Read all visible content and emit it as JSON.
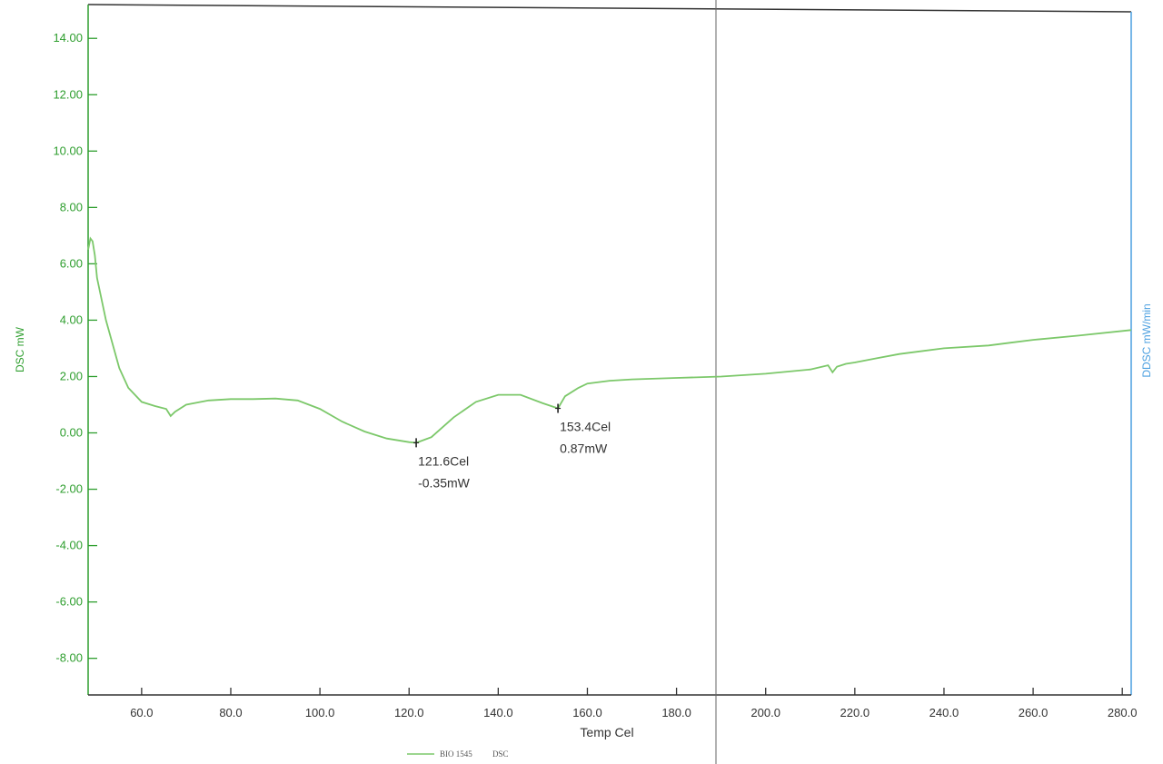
{
  "chart_data": {
    "type": "line",
    "xlabel": "Temp Cel",
    "ylabel": "DSC mW",
    "y2label": "DDSC mW/min",
    "xlim": [
      48,
      282
    ],
    "ylim": [
      -9.3,
      15.2
    ],
    "x_ticks": [
      60,
      80,
      100,
      120,
      140,
      160,
      180,
      200,
      220,
      240,
      260,
      280
    ],
    "x_tick_labels": [
      "60.0",
      "80.0",
      "100.0",
      "120.0",
      "140.0",
      "160.0",
      "180.0",
      "200.0",
      "220.0",
      "240.0",
      "260.0",
      "280.0"
    ],
    "y_ticks": [
      14,
      12,
      10,
      8,
      6,
      4,
      2,
      0,
      -2,
      -4,
      -6,
      -8
    ],
    "y_tick_labels": [
      "14.00",
      "12.00",
      "10.00",
      "8.00",
      "6.00",
      "4.00",
      "2.00",
      "0.00",
      "-2.00",
      "-4.00",
      "-6.00",
      "-8.00"
    ],
    "grid": false,
    "legend_position": "bottom-center",
    "colors": {
      "series": "#7cc86a",
      "axis": "#2e9e2e",
      "y2axis": "#4a9fe0",
      "frame": "#333333"
    },
    "series": [
      {
        "name": "BIO 1545 DSC",
        "x": [
          48,
          48.5,
          49,
          49.5,
          50,
          52,
          55,
          57,
          60,
          63,
          65.5,
          66.5,
          67.5,
          70,
          75,
          80,
          85,
          90,
          95,
          100,
          105,
          110,
          115,
          120,
          121.6,
          125,
          130,
          135,
          140,
          145,
          150,
          153.4,
          155,
          158,
          160,
          165,
          170,
          180,
          190,
          200,
          210,
          214,
          215,
          216,
          218,
          220,
          225,
          230,
          240,
          250,
          255,
          260,
          270,
          282
        ],
        "y": [
          6.5,
          6.9,
          6.8,
          6.3,
          5.5,
          4.0,
          2.3,
          1.6,
          1.1,
          0.95,
          0.85,
          0.6,
          0.75,
          1.0,
          1.15,
          1.2,
          1.2,
          1.22,
          1.15,
          0.85,
          0.4,
          0.05,
          -0.2,
          -0.33,
          -0.35,
          -0.15,
          0.55,
          1.1,
          1.35,
          1.35,
          1.05,
          0.87,
          1.3,
          1.6,
          1.75,
          1.85,
          1.9,
          1.95,
          2.0,
          2.1,
          2.25,
          2.4,
          2.15,
          2.35,
          2.45,
          2.5,
          2.65,
          2.8,
          3.0,
          3.1,
          3.2,
          3.3,
          3.45,
          3.65
        ]
      }
    ],
    "annotations": [
      {
        "x": 121.6,
        "y": -0.35,
        "label_temp": "121.6Cel",
        "label_value": "-0.35mW"
      },
      {
        "x": 153.4,
        "y": 0.87,
        "label_temp": "153.4Cel",
        "label_value": "0.87mW"
      }
    ],
    "legend": {
      "label": "BIO 1545",
      "suffix": "DSC"
    }
  }
}
